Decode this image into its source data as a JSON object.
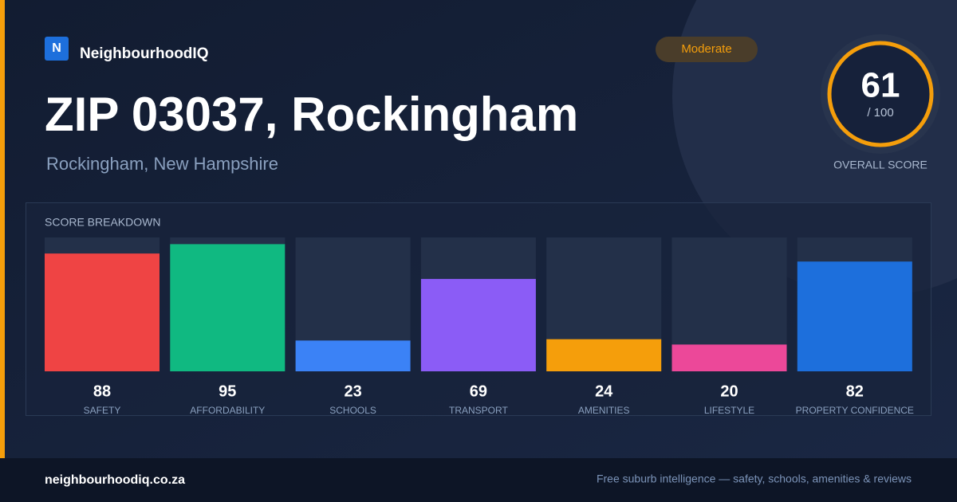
{
  "brand": {
    "logo_letter": "N",
    "name": "NeighbourhoodIQ"
  },
  "badge": "Moderate",
  "title": "ZIP 03037, Rockingham",
  "subtitle": "Rockingham, New Hampshire",
  "score": {
    "value": 61,
    "out_of": "/ 100",
    "label": "OVERALL SCORE"
  },
  "chart_data": {
    "type": "bar",
    "title": "SCORE BREAKDOWN",
    "categories": [
      "SAFETY",
      "AFFORDABILITY",
      "SCHOOLS",
      "TRANSPORT",
      "AMENITIES",
      "LIFESTYLE",
      "PROPERTY CONFIDENCE"
    ],
    "values": [
      88,
      95,
      23,
      69,
      24,
      20,
      82
    ],
    "colors": [
      "#ef4444",
      "#10b981",
      "#3b82f6",
      "#8b5cf6",
      "#f59e0b",
      "#ec4899",
      "#1d6fdc"
    ],
    "ylim": [
      0,
      100
    ]
  },
  "footer": {
    "site": "neighbourhoodiq.co.za",
    "tagline": "Free suburb intelligence — safety, schools, amenities & reviews"
  }
}
